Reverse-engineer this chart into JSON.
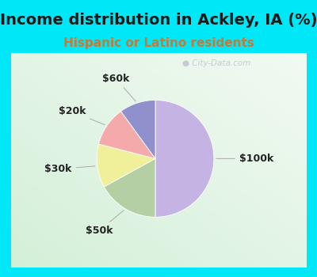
{
  "title": "Income distribution in Ackley, IA (%)",
  "subtitle": "Hispanic or Latino residents",
  "title_color": "#1a1a1a",
  "subtitle_color": "#cc7733",
  "bg_outer": "#00e8f8",
  "bg_inner_tl": "#c8edd8",
  "bg_inner_br": "#e8f8f0",
  "slices": [
    {
      "label": "$100k",
      "value": 50,
      "color": "#c5b4e3"
    },
    {
      "label": "$50k",
      "value": 17,
      "color": "#b5cfa5"
    },
    {
      "label": "$30k",
      "value": 12,
      "color": "#f0f09a"
    },
    {
      "label": "$20k",
      "value": 11,
      "color": "#f4aaaa"
    },
    {
      "label": "$60k",
      "value": 10,
      "color": "#9090cc"
    }
  ],
  "title_fontsize": 14,
  "subtitle_fontsize": 11,
  "label_fontsize": 9,
  "watermark": "City-Data.com"
}
